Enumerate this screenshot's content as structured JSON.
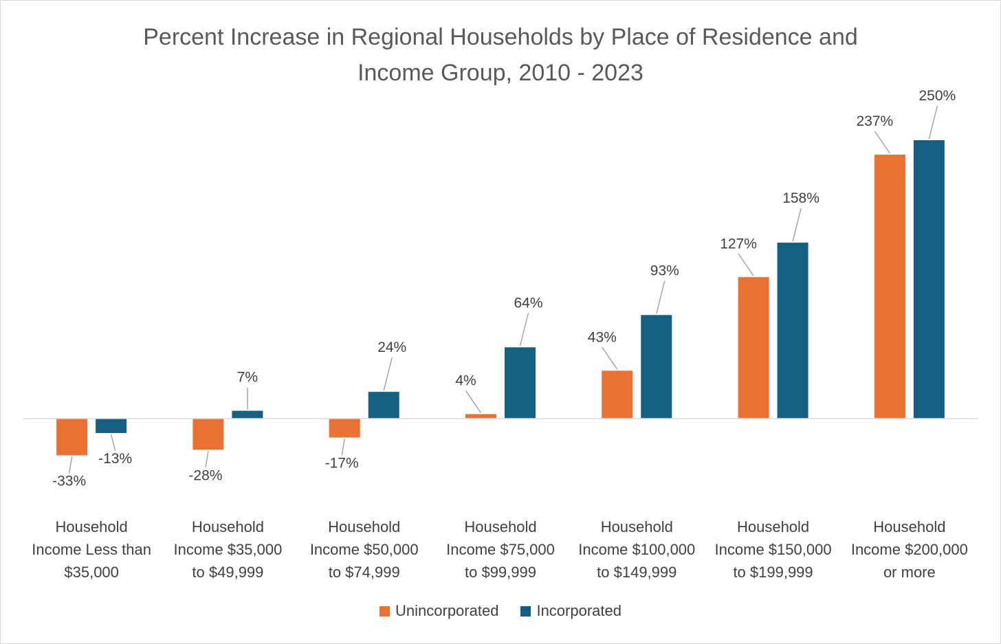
{
  "chart_data": {
    "type": "bar",
    "title_lines": [
      "Percent Increase in Regional Households by Place of Residence and",
      "Income Group, 2010 - 2023"
    ],
    "categories": [
      [
        "Household",
        "Income Less than",
        "$35,000"
      ],
      [
        "Household",
        "Income $35,000",
        "to $49,999"
      ],
      [
        "Household",
        "Income $50,000",
        "to $74,999"
      ],
      [
        "Household",
        "Income $75,000",
        "to $99,999"
      ],
      [
        "Household",
        "Income $100,000",
        "to $149,999"
      ],
      [
        "Household",
        "Income $150,000",
        "to $199,999"
      ],
      [
        "Household",
        "Income $200,000",
        "or more"
      ]
    ],
    "series": [
      {
        "name": "Unincorporated",
        "color": "#E97132",
        "values": [
          -33,
          -28,
          -17,
          4,
          43,
          127,
          237
        ],
        "labels": [
          "-33%",
          "-28%",
          "-17%",
          "4%",
          "43%",
          "127%",
          "237%"
        ]
      },
      {
        "name": "Incorporated",
        "color": "#156082",
        "values": [
          -13,
          7,
          24,
          64,
          93,
          158,
          250
        ],
        "labels": [
          "-13%",
          "7%",
          "24%",
          "64%",
          "93%",
          "158%",
          "250%"
        ]
      }
    ],
    "ylim": [
      -40,
      270
    ],
    "grid": false,
    "legend_position": "bottom"
  }
}
